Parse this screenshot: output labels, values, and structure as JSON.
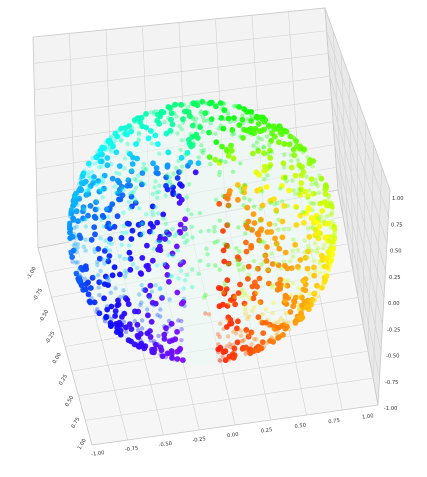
{
  "chart_data": {
    "type": "scatter",
    "projection": "3d",
    "grid": true,
    "shape": "unit-sphere",
    "colormap": "rainbow",
    "colors": {
      "pane": "#f1f1f1",
      "pane_dark": "#e4e4e4",
      "grid": "#d2d2d2",
      "edge": "#bdbdbd"
    },
    "axes": {
      "x": {
        "range": [
          -1.0,
          1.0
        ],
        "ticks": [
          "-1.00",
          "-0.75",
          "-0.50",
          "-0.25",
          "0.00",
          "0.25",
          "0.50",
          "0.75",
          "1.00"
        ]
      },
      "y": {
        "range": [
          -1.0,
          1.0
        ],
        "ticks": [
          "-1.00",
          "-0.75",
          "-0.50",
          "-0.25",
          "0.00",
          "0.25",
          "0.50",
          "0.75",
          "1.00"
        ]
      },
      "z": {
        "range": [
          -1.0,
          1.0
        ],
        "ticks": [
          "-1.00",
          "-0.75",
          "-0.50",
          "-0.25",
          "0.00",
          "0.25",
          "0.50",
          "0.75",
          "1.00"
        ]
      }
    },
    "series": [
      {
        "points": 1600,
        "description_colors": [
          "#ff0000",
          "#ff7a00",
          "#ffd24a",
          "#7fffc0",
          "#00e5ff",
          "#2b7bff",
          "#5b00ff",
          "#9a00ff"
        ]
      }
    ]
  }
}
